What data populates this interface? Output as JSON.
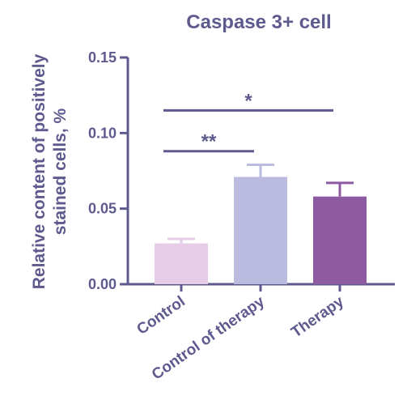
{
  "chart_data": {
    "type": "bar",
    "title": "Caspase 3+ cell",
    "ylabel": "Relative content of positively stained cells, %",
    "xlabel": "",
    "ylim": [
      0,
      0.15
    ],
    "yticks": [
      "0.00",
      "0.05",
      "0.10",
      "0.15"
    ],
    "categories": [
      "Control",
      "Control of therapy",
      "Therapy"
    ],
    "values": [
      0.027,
      0.071,
      0.058
    ],
    "errors": [
      0.003,
      0.008,
      0.009
    ],
    "colors": [
      "#e6cce6",
      "#bbbbe0",
      "#8e5aa2"
    ],
    "axis_color": "#5e5a8e",
    "significance": [
      {
        "label": "**",
        "from": "Control",
        "to": "Control of therapy",
        "y": 0.088
      },
      {
        "label": "*",
        "from": "Control",
        "to": "Therapy",
        "y": 0.115
      }
    ]
  }
}
